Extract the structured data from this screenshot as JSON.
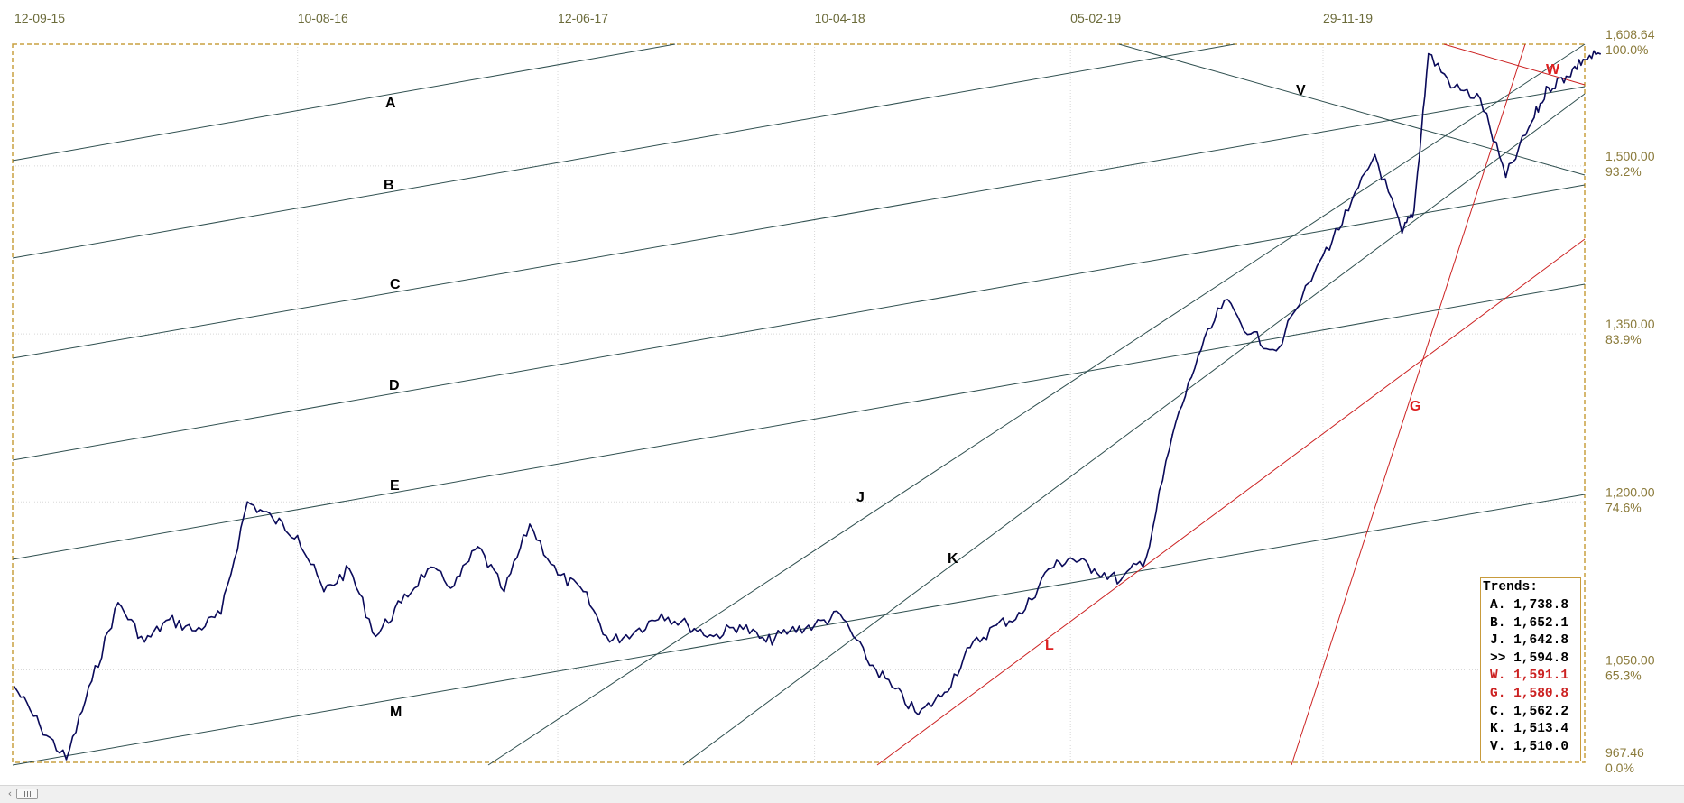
{
  "chart_data": {
    "type": "line",
    "x_ticks": [
      "12-09-15",
      "10-08-16",
      "12-06-17",
      "10-04-18",
      "05-02-19",
      "29-11-19"
    ],
    "y_ticks": [
      {
        "price": "1,608.64",
        "pct": "100.0%"
      },
      {
        "price": "1,500.00",
        "pct": "93.2%"
      },
      {
        "price": "1,350.00",
        "pct": "83.9%"
      },
      {
        "price": "1,200.00",
        "pct": "74.6%"
      },
      {
        "price": "1,050.00",
        "pct": "65.3%"
      },
      {
        "price": "967.46",
        "pct": "0.0%"
      }
    ],
    "ylim": [
      967.46,
      1608.64
    ],
    "grid": true,
    "series": [
      {
        "color": "#0a0a5a",
        "x": [
          "12-09-15",
          "12-10-15",
          "12-11-15",
          "12-12-15",
          "12-01-16",
          "12-02-16",
          "12-03-16",
          "12-04-16",
          "12-05-16",
          "12-06-16",
          "12-07-16",
          "10-08-16",
          "10-09-16",
          "10-10-16",
          "10-11-16",
          "10-12-16",
          "10-01-17",
          "10-02-17",
          "10-03-17",
          "10-04-17",
          "10-05-17",
          "12-06-17",
          "12-07-17",
          "12-08-17",
          "12-09-17",
          "12-10-17",
          "12-11-17",
          "12-12-17",
          "12-01-18",
          "12-02-18",
          "12-03-18",
          "10-04-18",
          "10-05-18",
          "10-06-18",
          "10-07-18",
          "10-08-18",
          "10-09-18",
          "10-10-18",
          "10-11-18",
          "10-12-18",
          "10-01-19",
          "05-02-19",
          "05-03-19",
          "05-04-19",
          "05-05-19",
          "05-06-19",
          "05-07-19",
          "05-08-19",
          "05-09-19",
          "05-10-19",
          "29-11-19",
          "29-12-19",
          "29-01-20",
          "01-03-20",
          "15-03-20",
          "01-04-20",
          "01-05-20",
          "01-06-20",
          "01-07-20",
          "01-08-20",
          "20-08-20",
          "10-09-20",
          "30-09-20",
          "20-10-20"
        ],
        "values": [
          1035,
          1000,
          970,
          1040,
          1110,
          1075,
          1095,
          1085,
          1100,
          1200,
          1185,
          1170,
          1120,
          1140,
          1080,
          1110,
          1140,
          1125,
          1160,
          1120,
          1180,
          1135,
          1120,
          1075,
          1085,
          1100,
          1090,
          1080,
          1090,
          1075,
          1085,
          1090,
          1100,
          1060,
          1035,
          1010,
          1030,
          1070,
          1090,
          1100,
          1140,
          1150,
          1140,
          1130,
          1150,
          1260,
          1330,
          1380,
          1350,
          1335,
          1420,
          1460,
          1510,
          1440,
          1460,
          1600,
          1570,
          1560,
          1490,
          1540,
          1570,
          1580,
          1595,
          1600
        ]
      }
    ],
    "trend_lines": [
      {
        "label": "A",
        "color": "#2f4f4f"
      },
      {
        "label": "B",
        "color": "#2f4f4f"
      },
      {
        "label": "C",
        "color": "#2f4f4f"
      },
      {
        "label": "D",
        "color": "#2f4f4f"
      },
      {
        "label": "E",
        "color": "#2f4f4f"
      },
      {
        "label": "M",
        "color": "#2f4f4f"
      },
      {
        "label": "J",
        "color": "#2f4f4f"
      },
      {
        "label": "K",
        "color": "#2f4f4f"
      },
      {
        "label": "V",
        "color": "#2f4f4f"
      },
      {
        "label": "L",
        "color": "#cc2222"
      },
      {
        "label": "G",
        "color": "#cc2222"
      },
      {
        "label": "W",
        "color": "#cc2222"
      }
    ],
    "trends_box": {
      "title": "Trends:",
      "rows": [
        {
          "label": "A.",
          "value": "1,738.8",
          "color": "#000000"
        },
        {
          "label": "B.",
          "value": "1,652.1",
          "color": "#000000"
        },
        {
          "label": "J.",
          "value": "1,642.8",
          "color": "#000000"
        },
        {
          "label": ">>",
          "value": "1,594.8",
          "color": "#000000"
        },
        {
          "label": "W.",
          "value": "1,591.1",
          "color": "#cc2222"
        },
        {
          "label": "G.",
          "value": "1,580.8",
          "color": "#cc2222"
        },
        {
          "label": "C.",
          "value": "1,562.2",
          "color": "#000000"
        },
        {
          "label": "K.",
          "value": "1,513.4",
          "color": "#000000"
        },
        {
          "label": "V.",
          "value": "1,510.0",
          "color": "#000000"
        }
      ]
    }
  },
  "scrollbar": {
    "left_arrow": "‹"
  }
}
